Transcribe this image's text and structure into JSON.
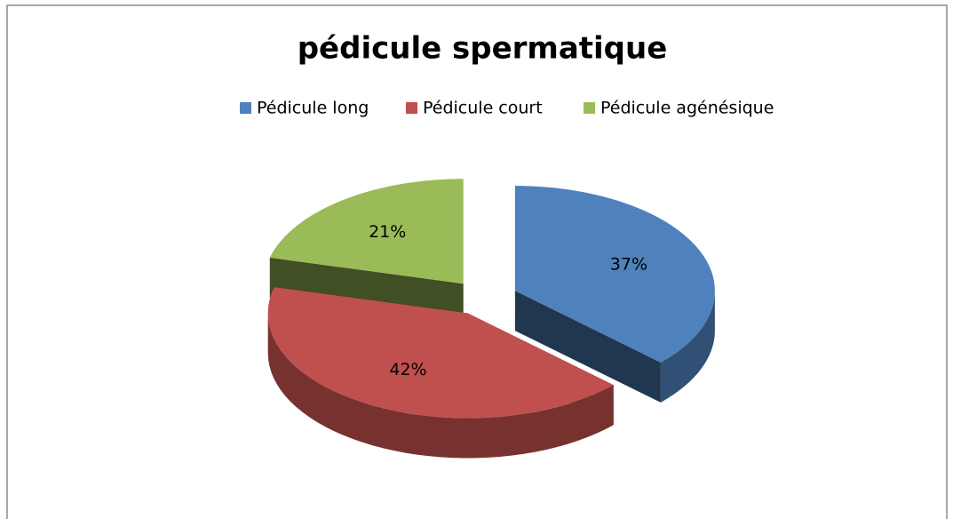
{
  "chart_data": {
    "type": "pie",
    "title": "pédicule spermatique",
    "categories": [
      "Pédicule long",
      "Pédicule court",
      "Pédicule agénésique"
    ],
    "values": [
      37,
      42,
      21
    ],
    "value_labels": [
      "37%",
      "42%",
      "21%"
    ],
    "colors": [
      "#4f81bd",
      "#c0504d",
      "#9bbb59"
    ],
    "legend": "top"
  }
}
